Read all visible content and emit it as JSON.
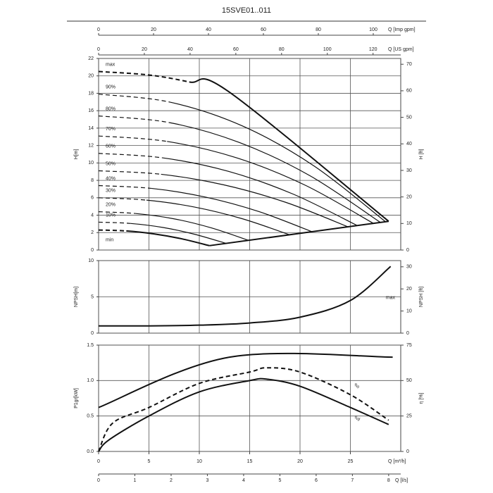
{
  "chart_data": [
    {
      "type": "line",
      "title": "15SVE01..011",
      "top_axes": [
        {
          "label": "Q [Imp gpm]",
          "xlim": [
            0,
            110
          ],
          "xticks": [
            0,
            20,
            40,
            60,
            80,
            100
          ]
        },
        {
          "label": "Q [US gpm]",
          "xlim": [
            0,
            132.1
          ],
          "xticks": [
            0,
            20,
            40,
            60,
            80,
            100,
            120
          ]
        }
      ],
      "xlim": [
        0,
        30
      ],
      "ylabel": "H[m]",
      "ylim": [
        0,
        22
      ],
      "yticks": [
        0,
        2,
        4,
        6,
        8,
        10,
        12,
        14,
        16,
        18,
        20,
        22
      ],
      "y2label": "H [ft]",
      "y2lim": [
        0,
        72.18
      ],
      "y2ticks": [
        0,
        10,
        20,
        30,
        40,
        50,
        60,
        70
      ],
      "grid": true,
      "series": [
        {
          "name": "max",
          "color": "#111111",
          "bold": true,
          "dashed_segments": 2,
          "x": [
            0,
            5,
            9,
            12.9,
            28.8
          ],
          "values": [
            20.5,
            20.1,
            19.3,
            18.2,
            3.3
          ]
        },
        {
          "name": "90%",
          "color": "#111111",
          "dashed_segments": 1,
          "x": [
            0,
            7.1,
            14.3,
            21.4,
            28.5
          ],
          "values": [
            17.9,
            16.98,
            14.24,
            9.65,
            3.24
          ]
        },
        {
          "name": "80%",
          "color": "#111111",
          "dashed_segments": 1,
          "x": [
            0,
            7,
            14,
            21,
            28
          ],
          "values": [
            15.4,
            14.64,
            12.34,
            8.52,
            3.16
          ]
        },
        {
          "name": "70%",
          "color": "#111111",
          "dashed_segments": 1,
          "x": [
            0,
            6.8,
            13.7,
            20.5,
            27.3
          ],
          "values": [
            13.1,
            12.47,
            10.59,
            7.45,
            3.05
          ]
        },
        {
          "name": "60%",
          "color": "#111111",
          "dashed_segments": 1,
          "x": [
            0,
            6.4,
            12.9,
            19.3,
            25.7
          ],
          "values": [
            11.1,
            10.58,
            9.03,
            6.43,
            2.8
          ]
        },
        {
          "name": "50%",
          "color": "#111111",
          "dashed_segments": 1,
          "x": [
            0,
            6.2,
            12.4,
            18.6,
            24.8
          ],
          "values": [
            9.1,
            8.7,
            7.49,
            5.47,
            2.65
          ]
        },
        {
          "name": "40%",
          "color": "#111111",
          "dashed_segments": 1,
          "x": [
            0,
            5.3,
            10.6,
            15.9,
            21.2
          ],
          "values": [
            7.4,
            7.07,
            6.08,
            4.42,
            2.1
          ]
        },
        {
          "name": "30%",
          "color": "#111111",
          "dashed_segments": 1,
          "x": [
            0,
            4.75,
            9.5,
            14.25,
            19
          ],
          "values": [
            6,
            5.73,
            4.94,
            3.6,
            1.74
          ]
        },
        {
          "name": "20%",
          "color": "#111111",
          "dashed_segments": 1,
          "x": [
            0,
            3.7,
            7.5,
            11.2,
            14.9
          ],
          "values": [
            4.4,
            4.19,
            3.58,
            2.54,
            1.1
          ]
        },
        {
          "name": "10%",
          "color": "#111111",
          "dashed_segments": 1,
          "x": [
            0,
            3.2,
            6.4,
            9.5,
            12.7
          ],
          "values": [
            3.2,
            3.05,
            2.59,
            1.82,
            0.75
          ]
        },
        {
          "name": "min",
          "color": "#111111",
          "bold": true,
          "label_below": true,
          "dashed_segments": 1,
          "x": [
            0,
            2.75,
            5.5,
            8.25,
            11
          ],
          "values": [
            2.3,
            2.19,
            1.85,
            1.29,
            0.5
          ]
        },
        {
          "color": "#111111",
          "bold": true,
          "x": [
            11,
            28.8
          ],
          "values": [
            0.5,
            3.3
          ]
        }
      ]
    },
    {
      "type": "line",
      "xlim": [
        0,
        30
      ],
      "ylabel": "NPSH[m]",
      "ylim": [
        0,
        10
      ],
      "yticks": [
        0,
        5,
        10
      ],
      "y2label": "NPSH [ft]",
      "y2lim": [
        0,
        32.81
      ],
      "y2ticks": [
        0,
        10,
        20,
        30
      ],
      "grid": true,
      "series": [
        {
          "name": "max",
          "color": "#111111",
          "bold": true,
          "x": [
            0,
            5,
            10,
            15,
            20,
            25,
            29
          ],
          "values": [
            1.0,
            1.0,
            1.1,
            1.4,
            2.2,
            4.5,
            9.2
          ]
        }
      ]
    },
    {
      "type": "line",
      "xlim": [
        0,
        30
      ],
      "xticks": [
        0,
        5,
        10,
        15,
        20,
        25
      ],
      "xlabel": "Q [m³/h]",
      "secondary_x": {
        "label": "Q [l/s]",
        "xlim": [
          0,
          8.333
        ],
        "xticks": [
          0,
          1,
          2,
          3,
          4,
          5,
          6,
          7,
          8
        ]
      },
      "ylabel": "P1gr[kW]",
      "ylim": [
        0,
        1.5
      ],
      "yticks": [
        {
          "value": 0,
          "label": "0.0"
        },
        0.5,
        {
          "value": 1,
          "label": "1.0"
        },
        1.5
      ],
      "y2label": "η [%]",
      "y2lim": [
        0,
        75
      ],
      "y2ticks": [
        0,
        25,
        50,
        75
      ],
      "grid": true,
      "series": [
        {
          "color": "#111111",
          "bold": true,
          "x": [
            0,
            13,
            29.2
          ],
          "values": [
            0.62,
            1.33,
            1.33
          ]
        },
        {
          "name": {
            "base": "η",
            "sub": "p"
          },
          "axis": "y2",
          "color": "#111111",
          "bold": true,
          "dashed": true,
          "x": [
            0,
            1.4,
            5,
            10,
            15,
            16.7,
            20,
            25,
            28.8
          ],
          "values": [
            0,
            20,
            31,
            48,
            56,
            59,
            56,
            40,
            22
          ]
        },
        {
          "name": {
            "base": "η",
            "sub": "gr"
          },
          "axis": "y2",
          "color": "#111111",
          "bold": true,
          "label_below": true,
          "x": [
            0,
            1,
            5,
            10,
            15,
            16.7,
            20,
            25,
            28.8
          ],
          "values": [
            0,
            8,
            25,
            42,
            50,
            51,
            46,
            31,
            19
          ]
        }
      ]
    }
  ]
}
